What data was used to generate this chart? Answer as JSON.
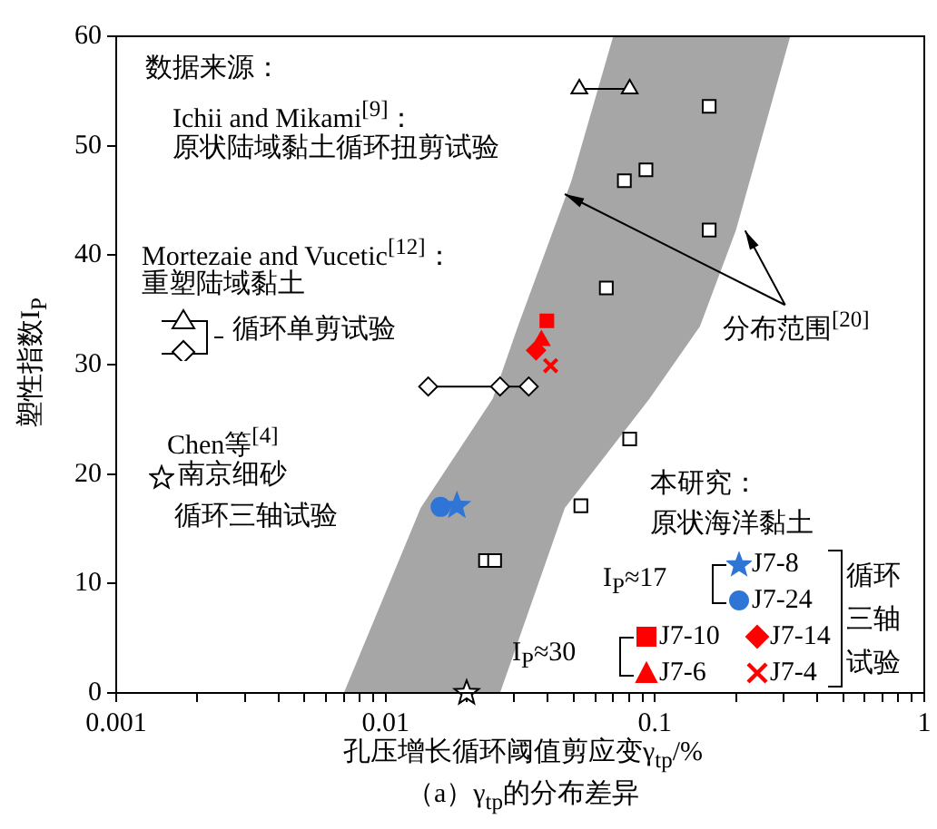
{
  "chart_data": {
    "type": "scatter",
    "title": "（a）γ$_{tp}$的分布差异",
    "xlabel": "孔压增长循环阈值剪应变γ$_{tp}$/%",
    "ylabel": "塑性指数I$_{P}$",
    "log": "x",
    "xlim": [
      0.001,
      1
    ],
    "xticks": [
      0.001,
      {
        "value": 0.002,
        "label": null
      },
      {
        "value": 0.003,
        "label": null
      },
      {
        "value": 0.004,
        "label": null
      },
      {
        "value": 0.005,
        "label": null
      },
      {
        "value": 0.006,
        "label": null
      },
      {
        "value": 0.007,
        "label": null
      },
      {
        "value": 0.008,
        "label": null
      },
      {
        "value": 0.009,
        "label": null
      },
      0.01,
      {
        "value": 0.02,
        "label": null
      },
      {
        "value": 0.03,
        "label": null
      },
      {
        "value": 0.04,
        "label": null
      },
      {
        "value": 0.05,
        "label": null
      },
      {
        "value": 0.06,
        "label": null
      },
      {
        "value": 0.07,
        "label": null
      },
      {
        "value": 0.08,
        "label": null
      },
      {
        "value": 0.09,
        "label": null
      },
      0.1,
      {
        "value": 0.2,
        "label": null
      },
      {
        "value": 0.3,
        "label": null
      },
      {
        "value": 0.4,
        "label": null
      },
      {
        "value": 0.5,
        "label": null
      },
      {
        "value": 0.6,
        "label": null
      },
      {
        "value": 0.7,
        "label": null
      },
      {
        "value": 0.8,
        "label": null
      },
      {
        "value": 0.9,
        "label": null
      },
      1
    ],
    "ylim": [
      0,
      60
    ],
    "yticks": [
      0,
      10,
      20,
      30,
      40,
      50,
      60
    ],
    "grid": false,
    "legend": "bottom right",
    "series": [
      {
        "type": "area",
        "color": "#a6a6a6",
        "x": [
          0.007,
          0.0135,
          0.025,
          0.031,
          0.049,
          0.07,
          0.318,
          0.2,
          0.147,
          0.0955,
          0.0463,
          0.0266
        ],
        "values": [
          0,
          16.9,
          26.9,
          33.5,
          46.8,
          60,
          60,
          42.3,
          33.5,
          26.9,
          16.9,
          0
        ]
      },
      {
        "marker": "square",
        "color": "#ffffff",
        "x": [
          0.159,
          0.077,
          0.0926,
          0.159,
          0.066,
          0.0806,
          0.0531,
          0.0235,
          0.0254
        ],
        "values": [
          53.6,
          46.8,
          47.8,
          42.3,
          37,
          23.2,
          17.1,
          12.1,
          12.1
        ]
      },
      {
        "type": "line",
        "name": "循环单剪试验",
        "marker": "triangle",
        "color": "#ffffff",
        "x": [
          0.0524,
          0.0806
        ],
        "values": [
          55.2,
          55.2
        ]
      },
      {
        "type": "line",
        "marker": "diamond",
        "color": "#ffffff",
        "x": [
          0.0144,
          0.0266,
          0.034
        ],
        "values": [
          28,
          28,
          28
        ]
      },
      {
        "name": "南京细砂",
        "marker": "star",
        "color": "#ffffff",
        "x": [
          0.02
        ],
        "values": [
          0
        ]
      },
      {
        "name": "J7-8",
        "marker": "star",
        "color": "#2f75d6",
        "x": [
          0.0184
        ],
        "values": [
          17.1
        ]
      },
      {
        "name": "J7-24",
        "marker": "circle",
        "color": "#2f75d6",
        "x": [
          0.016
        ],
        "values": [
          17
        ]
      },
      {
        "name": "J7-10",
        "marker": "square",
        "color": "#ff0000",
        "x": [
          0.0397
        ],
        "values": [
          34
        ]
      },
      {
        "name": "J7-14",
        "marker": "diamond",
        "color": "#ff0000",
        "x": [
          0.0362
        ],
        "values": [
          31.3
        ]
      },
      {
        "name": "J7-6",
        "marker": "triangle",
        "color": "#ff0000",
        "x": [
          0.0379
        ],
        "values": [
          32.2
        ]
      },
      {
        "name": "J7-4",
        "marker": "cross",
        "color": "#ff0000",
        "x": [
          0.041
        ],
        "values": [
          29.9
        ]
      }
    ],
    "annotations": [
      "数据来源：",
      "Ichii and Mikami$^{[9]}$：",
      "原状陆域黏土循环扭剪试验",
      "Mortezaie and Vucetic$^{[12]}$：",
      "重塑陆域黏土",
      "Chen等$^{[4]}$",
      "循环三轴试验",
      {
        "text": "分布范围$^{[20]}$",
        "x": 0.046,
        "y": 45.6
      },
      "本研究：",
      "原状海洋黏土",
      "I$_{P}$≈17",
      "I$_{P}$≈30",
      "循环三轴试验"
    ]
  }
}
